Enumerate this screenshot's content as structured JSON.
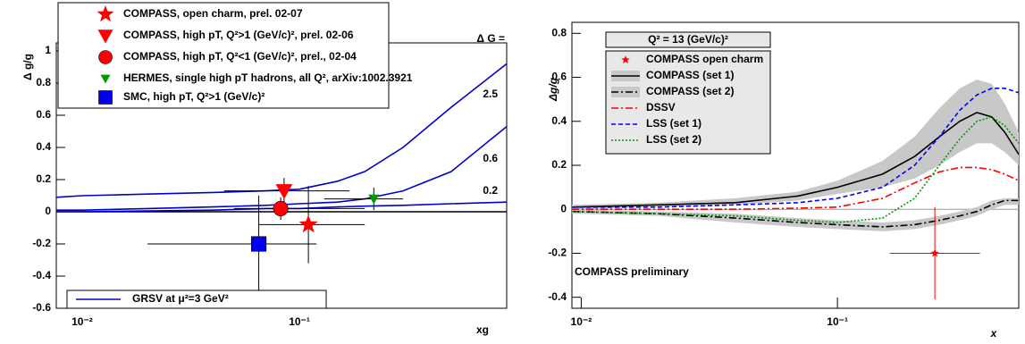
{
  "chart_data": [
    {
      "type": "line",
      "y_label": "Δ g/g",
      "x_label": "xg",
      "curve_label_title": "Δ G =",
      "curve_legend": "GRSV at μ²=3 GeV²",
      "xscale": "log",
      "xlim": [
        0.0076,
        0.9
      ],
      "ylim": [
        -0.6,
        1.05
      ],
      "xticks": [
        {
          "value": 0.01,
          "label": "10⁻²"
        },
        {
          "value": 0.1,
          "label": "10⁻¹"
        }
      ],
      "yticks": [
        -0.6,
        -0.4,
        -0.2,
        0,
        0.2,
        0.4,
        0.6,
        0.8,
        1
      ],
      "x": [
        0.0076,
        0.01,
        0.02,
        0.04,
        0.07,
        0.1,
        0.15,
        0.2,
        0.3,
        0.5,
        0.9
      ],
      "series": [
        {
          "name": "2.5",
          "color": "#0000cc",
          "style": "solid",
          "values": [
            0.09,
            0.1,
            0.11,
            0.12,
            0.13,
            0.14,
            0.19,
            0.25,
            0.4,
            0.65,
            0.92
          ]
        },
        {
          "name": "0.6",
          "color": "#0000cc",
          "style": "solid",
          "values": [
            0.01,
            0.01,
            0.02,
            0.03,
            0.04,
            0.05,
            0.06,
            0.08,
            0.13,
            0.25,
            0.53
          ]
        },
        {
          "name": "0.2",
          "color": "#0000cc",
          "style": "solid",
          "values": [
            0,
            0,
            0.005,
            0.01,
            0.02,
            0.02,
            0.03,
            0.035,
            0.04,
            0.05,
            0.06
          ]
        }
      ],
      "points": [
        {
          "name": "COMPASS, open charm, prel. 02-07",
          "marker": "star",
          "color": "#ff0000",
          "x": 0.11,
          "y": -0.08,
          "x_low": 0.065,
          "x_high": 0.2,
          "y_err": 0.24
        },
        {
          "name": "COMPASS, high pT, Q²>1 (GeV/c)², prel. 02-06",
          "marker": "triangle-down",
          "color": "#ff0000",
          "x": 0.085,
          "y": 0.13,
          "x_low": 0.045,
          "x_high": 0.17,
          "y_err": 0.08
        },
        {
          "name": "COMPASS, high pT, Q²<1 (GeV/c)², prel., 02-04",
          "marker": "circle",
          "color": "#ff0000",
          "x": 0.082,
          "y": 0.02,
          "x_low": 0.05,
          "x_high": 0.2,
          "y_err": 0.07
        },
        {
          "name": "HERMES, single high pT hadrons, all Q², arXiv:1002.3921",
          "marker": "triangle-down-small",
          "color": "#009900",
          "x": 0.22,
          "y": 0.08,
          "x_low": 0.13,
          "x_high": 0.3,
          "y_err": 0.07
        },
        {
          "name": "SMC, high pT, Q²>1 (GeV/c)²",
          "marker": "square",
          "color": "#0000ee",
          "x": 0.065,
          "y": -0.2,
          "x_low": 0.02,
          "x_high": 0.12,
          "y_err": 0.3
        }
      ]
    },
    {
      "type": "line",
      "y_label": "Δg/g",
      "x_label": "x",
      "legend_title": "Q² = 13 (GeV/c)²",
      "annotation": "COMPASS preliminary",
      "xscale": "log",
      "xlim": [
        0.0092,
        0.51
      ],
      "ylim": [
        -0.45,
        0.85
      ],
      "xticks": [
        {
          "value": 0.01,
          "label": "10⁻²"
        },
        {
          "value": 0.1,
          "label": "10⁻¹"
        }
      ],
      "yticks": [
        -0.4,
        -0.2,
        0,
        0.2,
        0.4,
        0.6,
        0.8
      ],
      "x": [
        0.0092,
        0.02,
        0.04,
        0.07,
        0.1,
        0.15,
        0.2,
        0.25,
        0.3,
        0.35,
        0.4,
        0.45,
        0.51
      ],
      "series": [
        {
          "name": "COMPASS (set 1)",
          "color": "#000000",
          "style": "solid",
          "band_color": "#c8c8c8",
          "values": [
            0.01,
            0.02,
            0.03,
            0.06,
            0.1,
            0.16,
            0.24,
            0.33,
            0.4,
            0.44,
            0.42,
            0.35,
            0.25
          ],
          "lower": [
            0,
            0.01,
            0.02,
            0.04,
            0.07,
            0.1,
            0.14,
            0.2,
            0.26,
            0.3,
            0.3,
            0.26,
            0.2
          ],
          "upper": [
            0.02,
            0.03,
            0.05,
            0.08,
            0.13,
            0.22,
            0.33,
            0.46,
            0.55,
            0.59,
            0.57,
            0.48,
            0.35
          ]
        },
        {
          "name": "COMPASS (set 2)",
          "color": "#000000",
          "style": "dashdot",
          "band_color": "#c8c8c8",
          "values": [
            -0.01,
            -0.02,
            -0.04,
            -0.06,
            -0.07,
            -0.08,
            -0.07,
            -0.05,
            -0.03,
            -0.01,
            0.02,
            0.04,
            0.04
          ],
          "lower": [
            -0.02,
            -0.03,
            -0.06,
            -0.08,
            -0.09,
            -0.1,
            -0.09,
            -0.07,
            -0.05,
            -0.03,
            0,
            0.02,
            0.02
          ],
          "upper": [
            0,
            -0.01,
            -0.02,
            -0.04,
            -0.05,
            -0.06,
            -0.05,
            -0.03,
            -0.01,
            0.01,
            0.04,
            0.05,
            0.05
          ]
        },
        {
          "name": "DSSV",
          "color": "#ff0000",
          "style": "dashdot",
          "values": [
            0,
            0,
            0,
            0.005,
            0.01,
            0.05,
            0.12,
            0.17,
            0.19,
            0.19,
            0.18,
            0.16,
            0.13
          ]
        },
        {
          "name": "LSS (set 1)",
          "color": "#0000ff",
          "style": "dashed",
          "values": [
            0.01,
            0.01,
            0.02,
            0.03,
            0.05,
            0.1,
            0.2,
            0.33,
            0.45,
            0.52,
            0.55,
            0.55,
            0.53
          ]
        },
        {
          "name": "LSS (set 2)",
          "color": "#009900",
          "style": "dotted",
          "values": [
            -0.01,
            -0.02,
            -0.03,
            -0.05,
            -0.06,
            -0.04,
            0.05,
            0.2,
            0.32,
            0.4,
            0.42,
            0.38,
            0.3
          ]
        }
      ],
      "points": [
        {
          "name": "COMPASS open charm",
          "marker": "star",
          "color": "#ff0000",
          "x": 0.24,
          "y": -0.2,
          "x_low": 0.16,
          "x_high": 0.36,
          "y_err": 0.21
        }
      ]
    }
  ]
}
